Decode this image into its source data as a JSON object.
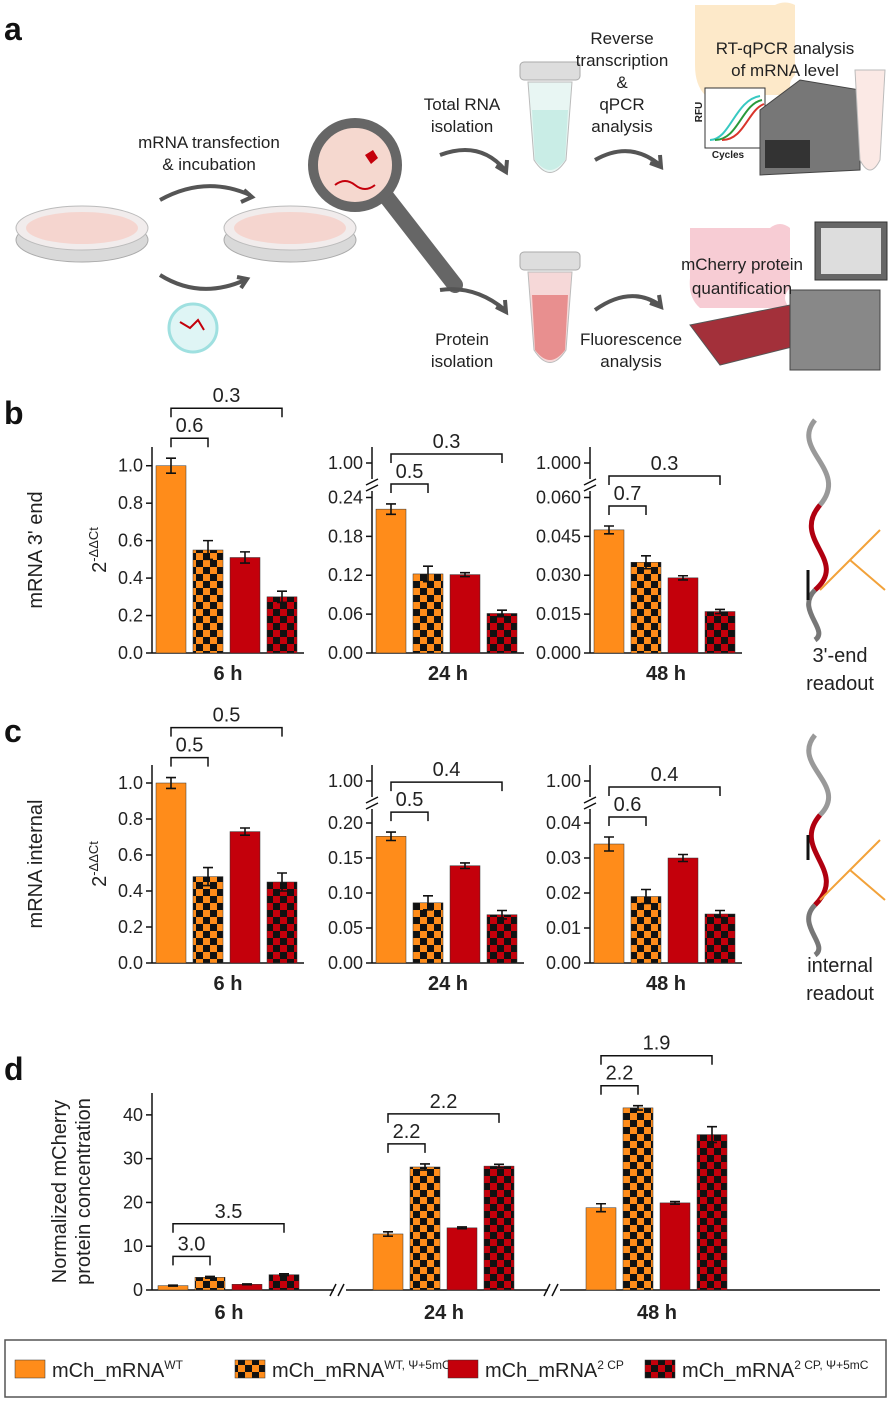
{
  "panel_labels": [
    "a",
    "b",
    "c",
    "d"
  ],
  "schematic": {
    "transfection": [
      "mRNA transfection",
      "& incubation"
    ],
    "rna_isolation": [
      "Total RNA",
      "isolation"
    ],
    "reverse_transcription": [
      "Reverse",
      "transcription",
      "&",
      "qPCR",
      "analysis"
    ],
    "rt_qpcr": [
      "RT-qPCR analysis",
      "of mRNA level"
    ],
    "rfu": "RFU",
    "cycles": "Cycles",
    "protein_isolation": [
      "Protein",
      "isolation"
    ],
    "fluorescence": [
      "Fluorescence",
      "analysis"
    ],
    "quantification": [
      "mCherry protein",
      "quantification"
    ]
  },
  "readouts": [
    [
      "3'-end",
      "readout"
    ],
    [
      "internal",
      "readout"
    ]
  ],
  "legend": {
    "series": [
      {
        "name": "mCh_mRNA",
        "name_sup": "WT",
        "color": "#ff8c1a",
        "checkered": false
      },
      {
        "name": "mCh_mRNA",
        "name_sup": "WT, Ψ+5mC",
        "color": "#ff8c1a",
        "checkered": true
      },
      {
        "name": "mCh_mRNA",
        "name_sup": "2 CP",
        "color": "#c4000b",
        "checkered": false
      },
      {
        "name": "mCh_mRNA",
        "name_sup": "2 CP, Ψ+5mC",
        "color": "#c4000b",
        "checkered": true
      }
    ]
  },
  "chart_data": [
    {
      "type": "bar",
      "y_label": "mRNA 3' end",
      "y_unit": {
        "base": "2",
        "sup": "-ΔΔCt"
      },
      "categories": [
        "6 h"
      ],
      "series": [
        {
          "values": [
            1.0
          ],
          "errors": [
            0.04
          ]
        },
        {
          "values": [
            0.55
          ],
          "errors": [
            0.05
          ]
        },
        {
          "values": [
            0.51
          ],
          "errors": [
            0.03
          ]
        },
        {
          "values": [
            0.3
          ],
          "errors": [
            0.03
          ]
        }
      ],
      "ylim": [
        0,
        1.1
      ],
      "yticks": [
        {
          "value": 0,
          "label": "0.0"
        },
        0.2,
        0.4,
        0.6,
        0.8,
        {
          "value": 1,
          "label": "1.0"
        }
      ],
      "brackets": [
        {
          "label": "0.6",
          "bars": [
            0,
            1
          ]
        },
        {
          "label": "0.3",
          "bars": [
            0,
            3
          ]
        }
      ]
    },
    {
      "type": "bar",
      "categories": [
        "24 h"
      ],
      "series": [
        {
          "values": [
            0.222
          ],
          "errors": [
            0.008
          ]
        },
        {
          "values": [
            0.122
          ],
          "errors": [
            0.012
          ]
        },
        {
          "values": [
            0.121
          ],
          "errors": [
            0.003
          ]
        },
        {
          "values": [
            0.061
          ],
          "errors": [
            0.005
          ]
        }
      ],
      "ylim": [
        0,
        1.02
      ],
      "ybreak": [
        0.25,
        0.98
      ],
      "yticks": [
        {
          "value": 0,
          "label": "0.00"
        },
        0.06,
        0.12,
        0.18,
        0.24,
        {
          "value": 1,
          "label": "1.00"
        }
      ],
      "brackets": [
        {
          "label": "0.5",
          "bars": [
            0,
            1
          ]
        },
        {
          "label": "0.3",
          "bars": [
            0,
            3
          ]
        }
      ]
    },
    {
      "type": "bar",
      "categories": [
        "48 h"
      ],
      "series": [
        {
          "values": [
            0.0475
          ],
          "errors": [
            0.0015
          ]
        },
        {
          "values": [
            0.035
          ],
          "errors": [
            0.0025
          ]
        },
        {
          "values": [
            0.029
          ],
          "errors": [
            0.0008
          ]
        },
        {
          "values": [
            0.016
          ],
          "errors": [
            0.0008
          ]
        }
      ],
      "ylim": [
        0,
        1.02
      ],
      "ybreak": [
        0.0625,
        0.98
      ],
      "yticks": [
        {
          "value": 0,
          "label": "0.000"
        },
        0.015,
        {
          "value": 0.03,
          "label": "0.030"
        },
        0.045,
        {
          "value": 0.06,
          "label": "0.060"
        },
        {
          "value": 1,
          "label": "1.000"
        }
      ],
      "brackets": [
        {
          "label": "0.7",
          "bars": [
            0,
            1
          ]
        },
        {
          "label": "0.3",
          "bars": [
            0,
            3
          ]
        }
      ]
    },
    {
      "type": "bar",
      "y_label": "mRNA internal",
      "y_unit": {
        "base": "2",
        "sup": "-ΔΔCt"
      },
      "categories": [
        "6 h"
      ],
      "series": [
        {
          "values": [
            1.0
          ],
          "errors": [
            0.03
          ]
        },
        {
          "values": [
            0.48
          ],
          "errors": [
            0.05
          ]
        },
        {
          "values": [
            0.73
          ],
          "errors": [
            0.02
          ]
        },
        {
          "values": [
            0.45
          ],
          "errors": [
            0.05
          ]
        }
      ],
      "ylim": [
        0,
        1.1
      ],
      "yticks": [
        {
          "value": 0,
          "label": "0.0"
        },
        0.2,
        0.4,
        0.6,
        0.8,
        {
          "value": 1,
          "label": "1.0"
        }
      ],
      "brackets": [
        {
          "label": "0.5",
          "bars": [
            0,
            1
          ]
        },
        {
          "label": "0.5",
          "bars": [
            0,
            3
          ]
        }
      ]
    },
    {
      "type": "bar",
      "categories": [
        "24 h"
      ],
      "series": [
        {
          "values": [
            0.181
          ],
          "errors": [
            0.006
          ]
        },
        {
          "values": [
            0.086
          ],
          "errors": [
            0.01
          ]
        },
        {
          "values": [
            0.139
          ],
          "errors": [
            0.004
          ]
        },
        {
          "values": [
            0.069
          ],
          "errors": [
            0.006
          ]
        }
      ],
      "ylim": [
        0,
        1.02
      ],
      "ybreak": [
        0.22,
        0.98
      ],
      "yticks": [
        {
          "value": 0,
          "label": "0.00"
        },
        0.05,
        {
          "value": 0.1,
          "label": "0.10"
        },
        0.15,
        {
          "value": 0.2,
          "label": "0.20"
        },
        {
          "value": 1,
          "label": "1.00"
        }
      ],
      "brackets": [
        {
          "label": "0.5",
          "bars": [
            0,
            1
          ]
        },
        {
          "label": "0.4",
          "bars": [
            0,
            3
          ]
        }
      ]
    },
    {
      "type": "bar",
      "categories": [
        "48 h"
      ],
      "series": [
        {
          "values": [
            0.034
          ],
          "errors": [
            0.002
          ]
        },
        {
          "values": [
            0.019
          ],
          "errors": [
            0.002
          ]
        },
        {
          "values": [
            0.03
          ],
          "errors": [
            0.001
          ]
        },
        {
          "values": [
            0.014
          ],
          "errors": [
            0.001
          ]
        }
      ],
      "ylim": [
        0,
        1.02
      ],
      "ybreak": [
        0.044,
        0.98
      ],
      "yticks": [
        {
          "value": 0,
          "label": "0.00"
        },
        0.01,
        0.02,
        0.03,
        0.04,
        {
          "value": 1,
          "label": "1.00"
        }
      ],
      "brackets": [
        {
          "label": "0.6",
          "bars": [
            0,
            1
          ]
        },
        {
          "label": "0.4",
          "bars": [
            0,
            3
          ]
        }
      ]
    },
    {
      "type": "bar",
      "y_label": [
        "Normalized mCherry",
        "protein concentration"
      ],
      "categories": [
        "6 h",
        "24 h",
        "48 h"
      ],
      "series": [
        {
          "values": [
            1.0,
            12.8,
            18.8
          ],
          "errors": [
            0.1,
            0.5,
            0.9
          ]
        },
        {
          "values": [
            2.9,
            28.1,
            41.6
          ],
          "errors": [
            0.2,
            0.7,
            0.5
          ]
        },
        {
          "values": [
            1.3,
            14.2,
            19.9
          ],
          "errors": [
            0.1,
            0.2,
            0.3
          ]
        },
        {
          "values": [
            3.5,
            28.3,
            35.5
          ],
          "errors": [
            0.2,
            0.4,
            1.8
          ]
        }
      ],
      "ylim": [
        0,
        45
      ],
      "yticks": [
        0,
        10,
        20,
        30,
        40
      ],
      "brackets": [
        {
          "label": "3.0",
          "category": 0,
          "bars": [
            0,
            1
          ]
        },
        {
          "label": "3.5",
          "category": 0,
          "bars": [
            0,
            3
          ]
        },
        {
          "label": "2.2",
          "category": 1,
          "bars": [
            0,
            1
          ]
        },
        {
          "label": "2.2",
          "category": 1,
          "bars": [
            0,
            3
          ]
        },
        {
          "label": "2.2",
          "category": 2,
          "bars": [
            0,
            1
          ]
        },
        {
          "label": "1.9",
          "category": 2,
          "bars": [
            0,
            3
          ]
        }
      ]
    }
  ]
}
